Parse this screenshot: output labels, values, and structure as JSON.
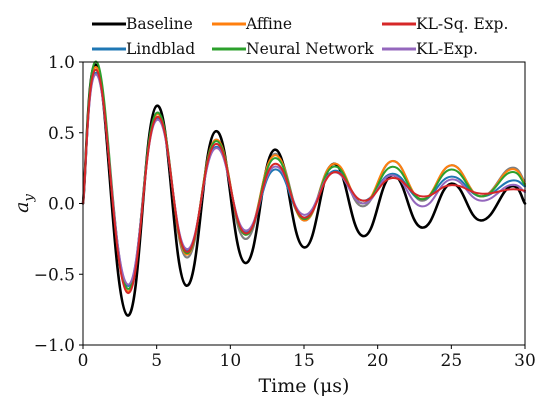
{
  "chart_data": {
    "type": "line",
    "title": "",
    "xlabel": "Time (μs)",
    "ylabel": "a_y",
    "xlim": [
      0,
      30
    ],
    "ylim": [
      -1.0,
      1.0
    ],
    "x_ticks": [
      0,
      5,
      10,
      15,
      20,
      25,
      30
    ],
    "x_tick_labels": [
      "0",
      "5",
      "10",
      "15",
      "20",
      "25",
      "30"
    ],
    "y_ticks": [
      1.0,
      0.5,
      0.0,
      -0.5,
      -1.0
    ],
    "y_tick_labels": [
      "1.0",
      "0.5",
      "0.0",
      "−0.5",
      "−1.0"
    ],
    "grid": false,
    "legend_location": "top, outside plot, 3 columns",
    "data_series": {
      "name": "",
      "color": "#808080",
      "x": [
        0,
        1,
        3,
        5,
        7,
        9,
        11,
        13,
        15,
        17,
        19,
        21,
        23,
        25,
        27,
        29,
        30
      ],
      "y": [
        0.0,
        0.93,
        -0.62,
        0.64,
        -0.38,
        0.45,
        -0.25,
        0.35,
        -0.12,
        0.28,
        -0.02,
        0.3,
        0.02,
        0.27,
        0.05,
        0.25,
        0.15
      ]
    },
    "series": [
      {
        "name": "Baseline",
        "color": "#000000",
        "x": [
          0,
          1,
          3,
          5,
          7,
          9,
          11,
          13,
          15,
          17,
          19,
          21,
          23,
          25,
          27,
          29,
          30
        ],
        "y": [
          0.0,
          0.96,
          -0.79,
          0.69,
          -0.58,
          0.51,
          -0.42,
          0.38,
          -0.31,
          0.28,
          -0.23,
          0.2,
          -0.17,
          0.14,
          -0.12,
          0.12,
          0.0
        ]
      },
      {
        "name": "Lindblad",
        "color": "#1f77b4",
        "x": [
          0,
          1,
          3,
          5,
          7,
          9,
          11,
          13,
          15,
          17,
          19,
          21,
          23,
          25,
          27,
          29,
          30
        ],
        "y": [
          0.0,
          0.91,
          -0.58,
          0.6,
          -0.33,
          0.4,
          -0.2,
          0.24,
          -0.1,
          0.23,
          0.02,
          0.21,
          0.03,
          0.19,
          0.05,
          0.16,
          0.12
        ]
      },
      {
        "name": "Affine",
        "color": "#ff7f0e",
        "x": [
          0,
          1,
          3,
          5,
          7,
          9,
          11,
          13,
          15,
          17,
          19,
          21,
          23,
          25,
          27,
          29,
          30
        ],
        "y": [
          0.0,
          0.95,
          -0.62,
          0.63,
          -0.36,
          0.45,
          -0.22,
          0.34,
          -0.12,
          0.28,
          0.0,
          0.3,
          0.03,
          0.27,
          0.05,
          0.24,
          0.14
        ]
      },
      {
        "name": "Neural Network",
        "color": "#2ca02c",
        "x": [
          0,
          1,
          3,
          5,
          7,
          9,
          11,
          13,
          15,
          17,
          19,
          21,
          23,
          25,
          27,
          29,
          30
        ],
        "y": [
          0.0,
          0.99,
          -0.6,
          0.64,
          -0.35,
          0.44,
          -0.22,
          0.32,
          -0.11,
          0.26,
          0.0,
          0.26,
          0.03,
          0.24,
          0.05,
          0.22,
          0.13
        ]
      },
      {
        "name": "KL-Sq. Exp.",
        "color": "#d62728",
        "x": [
          0,
          1,
          3,
          5,
          7,
          9,
          11,
          13,
          15,
          17,
          19,
          21,
          23,
          25,
          27,
          29,
          30
        ],
        "y": [
          0.0,
          0.93,
          -0.63,
          0.61,
          -0.34,
          0.42,
          -0.21,
          0.28,
          -0.1,
          0.22,
          0.02,
          0.18,
          0.05,
          0.13,
          0.07,
          0.1,
          0.09
        ]
      },
      {
        "name": "KL-Exp.",
        "color": "#9467bd",
        "x": [
          0,
          1,
          3,
          5,
          7,
          9,
          11,
          13,
          15,
          17,
          19,
          21,
          23,
          25,
          27,
          29,
          30
        ],
        "y": [
          0.0,
          0.9,
          -0.57,
          0.59,
          -0.32,
          0.39,
          -0.19,
          0.26,
          -0.08,
          0.22,
          0.0,
          0.2,
          -0.02,
          0.17,
          0.02,
          0.13,
          0.08
        ]
      }
    ]
  }
}
